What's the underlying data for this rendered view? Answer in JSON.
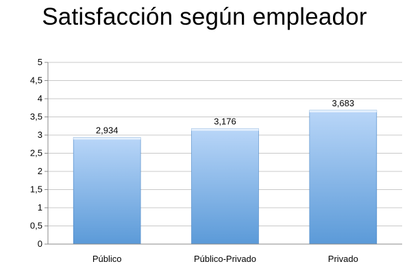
{
  "chart_data": {
    "type": "bar",
    "title": "Satisfacción según empleador",
    "categories": [
      "Público",
      "Público-Privado",
      "Privado"
    ],
    "values": [
      2.934,
      3.176,
      3.683
    ],
    "value_labels": [
      "2,934",
      "3,176",
      "3,683"
    ],
    "y_ticks": [
      "0",
      "0,5",
      "1",
      "1,5",
      "2",
      "2,5",
      "3",
      "3,5",
      "4",
      "4,5",
      "5"
    ],
    "ylim": [
      0,
      5
    ],
    "grid": true,
    "legend": "none",
    "colors": {
      "bar_top": "#b9d6f8",
      "bar_bottom": "#5b9ad8",
      "bar_edge": "#4a86c6",
      "grid": "#c8c8c8"
    }
  }
}
